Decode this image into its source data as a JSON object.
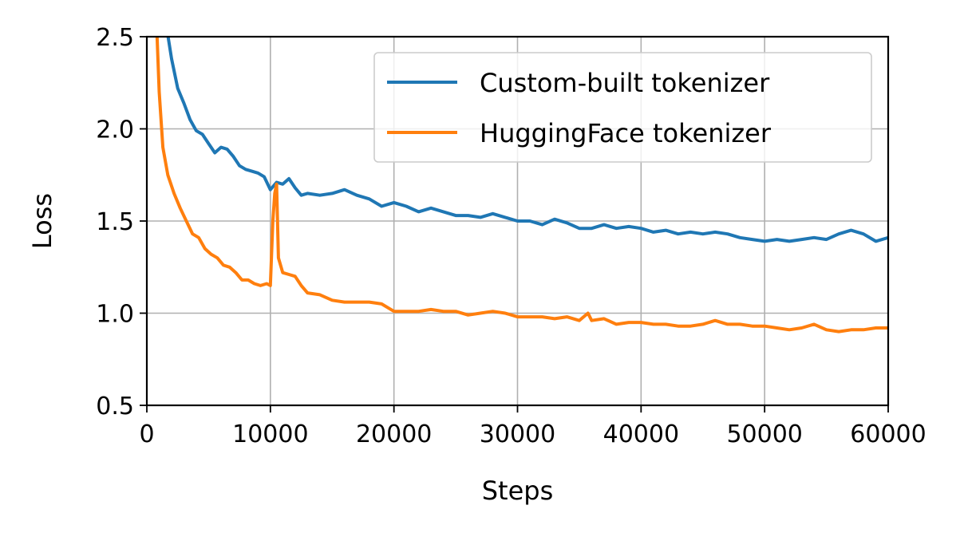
{
  "chart_data": {
    "type": "line",
    "title": "",
    "xlabel": "Steps",
    "ylabel": "Loss",
    "xlim": [
      0,
      60000
    ],
    "ylim": [
      0.5,
      2.5
    ],
    "xticks": [
      0,
      10000,
      20000,
      30000,
      40000,
      50000,
      60000
    ],
    "xtick_labels": [
      "0",
      "10000",
      "20000",
      "30000",
      "40000",
      "50000",
      "60000"
    ],
    "yticks": [
      0.5,
      1.0,
      1.5,
      2.0,
      2.5
    ],
    "ytick_labels": [
      "0.5",
      "1.0",
      "1.5",
      "2.0",
      "2.5"
    ],
    "grid": true,
    "legend_position": "top-right",
    "series": [
      {
        "name": "Custom-built tokenizer",
        "color": "#1f77b4",
        "points": [
          [
            1600,
            2.55
          ],
          [
            2000,
            2.38
          ],
          [
            2500,
            2.22
          ],
          [
            3000,
            2.14
          ],
          [
            3500,
            2.05
          ],
          [
            4000,
            1.99
          ],
          [
            4500,
            1.97
          ],
          [
            5000,
            1.92
          ],
          [
            5500,
            1.87
          ],
          [
            6000,
            1.9
          ],
          [
            6500,
            1.89
          ],
          [
            7000,
            1.85
          ],
          [
            7500,
            1.8
          ],
          [
            8000,
            1.78
          ],
          [
            8500,
            1.77
          ],
          [
            9000,
            1.76
          ],
          [
            9500,
            1.74
          ],
          [
            10000,
            1.67
          ],
          [
            10500,
            1.71
          ],
          [
            11000,
            1.7
          ],
          [
            11500,
            1.73
          ],
          [
            12000,
            1.68
          ],
          [
            12500,
            1.64
          ],
          [
            13000,
            1.65
          ],
          [
            14000,
            1.64
          ],
          [
            15000,
            1.65
          ],
          [
            16000,
            1.67
          ],
          [
            17000,
            1.64
          ],
          [
            18000,
            1.62
          ],
          [
            19000,
            1.58
          ],
          [
            20000,
            1.6
          ],
          [
            21000,
            1.58
          ],
          [
            22000,
            1.55
          ],
          [
            23000,
            1.57
          ],
          [
            24000,
            1.55
          ],
          [
            25000,
            1.53
          ],
          [
            26000,
            1.53
          ],
          [
            27000,
            1.52
          ],
          [
            28000,
            1.54
          ],
          [
            29000,
            1.52
          ],
          [
            30000,
            1.5
          ],
          [
            31000,
            1.5
          ],
          [
            32000,
            1.48
          ],
          [
            33000,
            1.51
          ],
          [
            34000,
            1.49
          ],
          [
            35000,
            1.46
          ],
          [
            36000,
            1.46
          ],
          [
            37000,
            1.48
          ],
          [
            38000,
            1.46
          ],
          [
            39000,
            1.47
          ],
          [
            40000,
            1.46
          ],
          [
            41000,
            1.44
          ],
          [
            42000,
            1.45
          ],
          [
            43000,
            1.43
          ],
          [
            44000,
            1.44
          ],
          [
            45000,
            1.43
          ],
          [
            46000,
            1.44
          ],
          [
            47000,
            1.43
          ],
          [
            48000,
            1.41
          ],
          [
            49000,
            1.4
          ],
          [
            50000,
            1.39
          ],
          [
            51000,
            1.4
          ],
          [
            52000,
            1.39
          ],
          [
            53000,
            1.4
          ],
          [
            54000,
            1.41
          ],
          [
            55000,
            1.4
          ],
          [
            56000,
            1.43
          ],
          [
            57000,
            1.45
          ],
          [
            58000,
            1.43
          ],
          [
            59000,
            1.39
          ],
          [
            60000,
            1.41
          ]
        ]
      },
      {
        "name": "HuggingFace tokenizer",
        "color": "#ff7f0e",
        "points": [
          [
            800,
            2.55
          ],
          [
            1000,
            2.2
          ],
          [
            1300,
            1.9
          ],
          [
            1700,
            1.75
          ],
          [
            2200,
            1.65
          ],
          [
            2700,
            1.57
          ],
          [
            3200,
            1.5
          ],
          [
            3700,
            1.43
          ],
          [
            4200,
            1.41
          ],
          [
            4700,
            1.35
          ],
          [
            5200,
            1.32
          ],
          [
            5700,
            1.3
          ],
          [
            6200,
            1.26
          ],
          [
            6700,
            1.25
          ],
          [
            7200,
            1.22
          ],
          [
            7700,
            1.18
          ],
          [
            8200,
            1.18
          ],
          [
            8700,
            1.16
          ],
          [
            9200,
            1.15
          ],
          [
            9700,
            1.16
          ],
          [
            10000,
            1.15
          ],
          [
            10200,
            1.5
          ],
          [
            10350,
            1.65
          ],
          [
            10500,
            1.7
          ],
          [
            10650,
            1.3
          ],
          [
            11000,
            1.22
          ],
          [
            11500,
            1.21
          ],
          [
            12000,
            1.2
          ],
          [
            12500,
            1.15
          ],
          [
            13000,
            1.11
          ],
          [
            14000,
            1.1
          ],
          [
            15000,
            1.07
          ],
          [
            16000,
            1.06
          ],
          [
            17000,
            1.06
          ],
          [
            18000,
            1.06
          ],
          [
            19000,
            1.05
          ],
          [
            20000,
            1.01
          ],
          [
            21000,
            1.01
          ],
          [
            22000,
            1.01
          ],
          [
            23000,
            1.02
          ],
          [
            24000,
            1.01
          ],
          [
            25000,
            1.01
          ],
          [
            26000,
            0.99
          ],
          [
            27000,
            1.0
          ],
          [
            28000,
            1.01
          ],
          [
            29000,
            1.0
          ],
          [
            30000,
            0.98
          ],
          [
            31000,
            0.98
          ],
          [
            32000,
            0.98
          ],
          [
            33000,
            0.97
          ],
          [
            34000,
            0.98
          ],
          [
            35000,
            0.96
          ],
          [
            35700,
            1.0
          ],
          [
            36000,
            0.96
          ],
          [
            37000,
            0.97
          ],
          [
            38000,
            0.94
          ],
          [
            39000,
            0.95
          ],
          [
            40000,
            0.95
          ],
          [
            41000,
            0.94
          ],
          [
            42000,
            0.94
          ],
          [
            43000,
            0.93
          ],
          [
            44000,
            0.93
          ],
          [
            45000,
            0.94
          ],
          [
            46000,
            0.96
          ],
          [
            47000,
            0.94
          ],
          [
            48000,
            0.94
          ],
          [
            49000,
            0.93
          ],
          [
            50000,
            0.93
          ],
          [
            51000,
            0.92
          ],
          [
            52000,
            0.91
          ],
          [
            53000,
            0.92
          ],
          [
            54000,
            0.94
          ],
          [
            55000,
            0.91
          ],
          [
            56000,
            0.9
          ],
          [
            57000,
            0.91
          ],
          [
            58000,
            0.91
          ],
          [
            59000,
            0.92
          ],
          [
            60000,
            0.92
          ]
        ]
      }
    ]
  }
}
